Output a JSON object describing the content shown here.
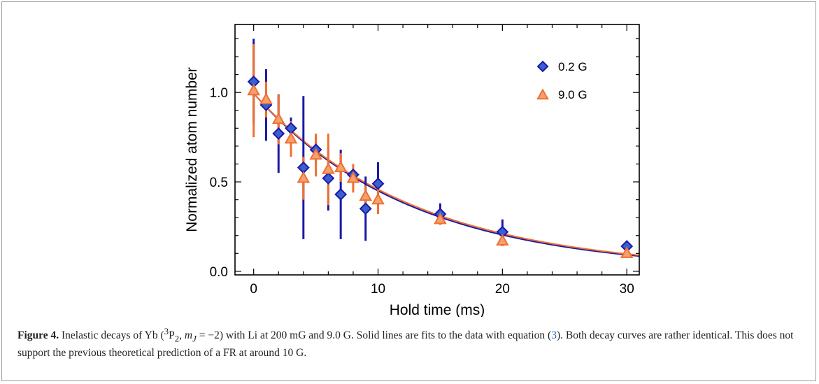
{
  "caption": {
    "figure_label": "Figure 4.",
    "text_a": " Inelastic decays of Yb (",
    "term_sup": "3",
    "term_letter": "P",
    "term_sub": "2",
    "text_b": ", ",
    "m_symbol": "m",
    "m_sub": "J",
    "m_value": " = −2)",
    "text_c": " with Li at 200 mG and 9.0 G. Solid lines are fits to the data with equation (",
    "eq_ref": "3",
    "text_d": "). Both decay curves are rather identical. This does not support the previous theoretical prediction of a FR at around 10 G."
  },
  "chart_data": {
    "type": "scatter",
    "xlabel": "Hold time (ms)",
    "ylabel": "Normalized atom number",
    "xlim": [
      -1.5,
      31
    ],
    "ylim": [
      -0.02,
      1.38
    ],
    "xticks": [
      0,
      10,
      20,
      30
    ],
    "yticks": [
      0.0,
      0.5,
      1.0
    ],
    "ytick_labels": [
      "0.0",
      "0.5",
      "1.0"
    ],
    "grid": false,
    "legend_position": "top-right",
    "series": [
      {
        "name": "0.2 G",
        "marker": "diamond",
        "color": "#1a1aa6",
        "fill": "#3a5fd0",
        "x": [
          0,
          1,
          2,
          3,
          4,
          5,
          6,
          7,
          8,
          9,
          10,
          15,
          20,
          30
        ],
        "y": [
          1.06,
          0.93,
          0.77,
          0.8,
          0.58,
          0.68,
          0.52,
          0.43,
          0.54,
          0.35,
          0.49,
          0.32,
          0.22,
          0.14
        ],
        "err": [
          0.24,
          0.2,
          0.22,
          0.06,
          0.4,
          0.08,
          0.18,
          0.25,
          0.03,
          0.18,
          0.12,
          0.06,
          0.07,
          0.03
        ],
        "fit": {
          "amplitude": 0.995,
          "tau_ms": 12.6,
          "color": "#1a1aa6"
        }
      },
      {
        "name": "9.0 G",
        "marker": "triangle",
        "color": "#f07030",
        "fill": "#f4a070",
        "x": [
          0,
          1,
          2,
          3,
          4,
          5,
          6,
          7,
          8,
          9,
          10,
          15,
          20,
          30
        ],
        "y": [
          1.01,
          0.96,
          0.85,
          0.74,
          0.52,
          0.65,
          0.57,
          0.58,
          0.52,
          0.42,
          0.4,
          0.29,
          0.17,
          0.1
        ],
        "err": [
          0.26,
          0.1,
          0.14,
          0.1,
          0.12,
          0.12,
          0.2,
          0.08,
          0.08,
          0.06,
          0.08,
          0.03,
          0.03,
          0.02
        ],
        "fit": {
          "amplitude": 0.995,
          "tau_ms": 12.9,
          "color": "#f07030"
        }
      }
    ]
  }
}
